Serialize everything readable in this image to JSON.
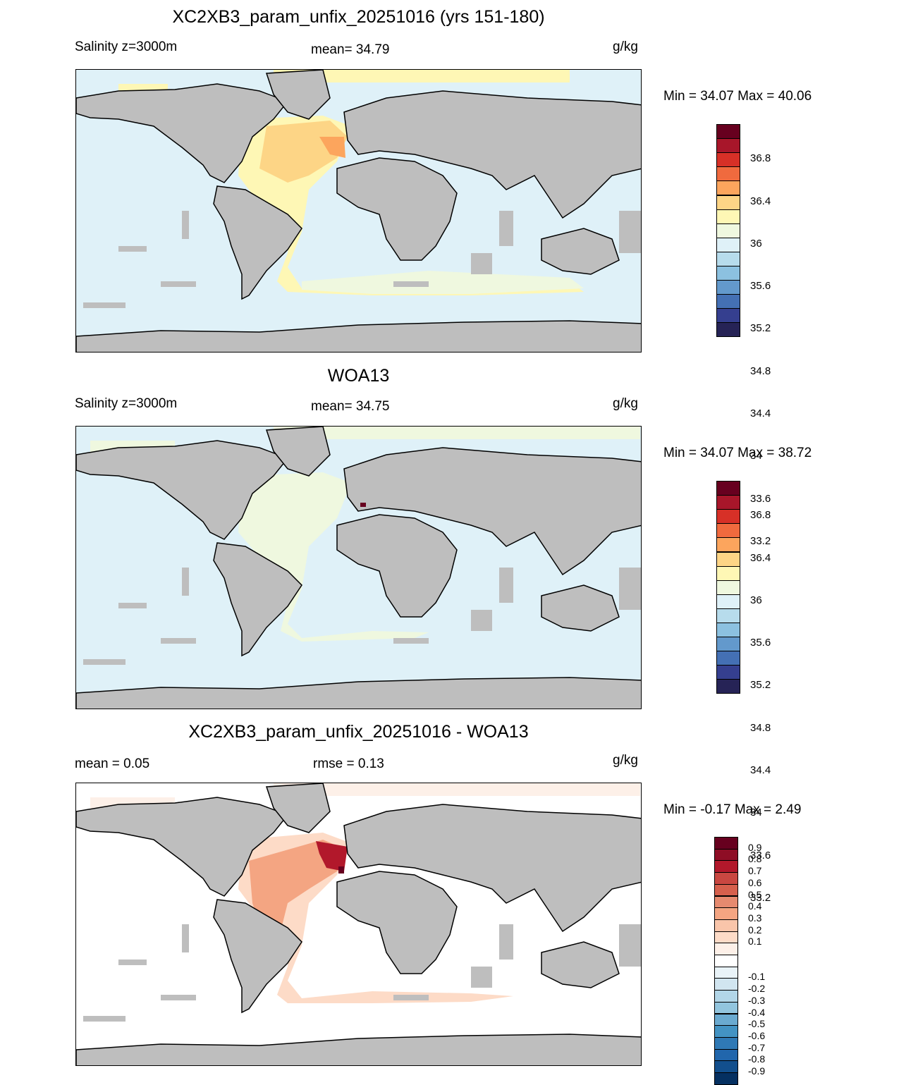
{
  "panels": [
    {
      "title": "XC2XB3_param_unfix_20251016 (yrs 151-180)",
      "left_label": "Salinity z=3000m",
      "center_label": "mean=  34.79",
      "units": "g/kg",
      "minmax": "Min =  34.07 Max =  40.06",
      "colorbar_labels": [
        "36.8",
        "36.4",
        "36",
        "35.6",
        "35.2",
        "34.8",
        "34.4",
        "34",
        "33.6",
        "33.2"
      ],
      "colorbar_colors": [
        "#67001f",
        "#a8162a",
        "#d73027",
        "#f06a3e",
        "#fca55d",
        "#fdd586",
        "#fef7b5",
        "#eff8df",
        "#dff1f8",
        "#b7dcec",
        "#8cc1e0",
        "#6399cc",
        "#4470b4",
        "#353f8f",
        "#262356"
      ]
    },
    {
      "title": "WOA13",
      "left_label": "Salinity z=3000m",
      "center_label": "mean=  34.75",
      "units": "g/kg",
      "minmax": "Min =  34.07 Max =  38.72",
      "colorbar_labels": [
        "36.8",
        "36.4",
        "36",
        "35.6",
        "35.2",
        "34.8",
        "34.4",
        "34",
        "33.6",
        "33.2"
      ],
      "colorbar_colors": [
        "#67001f",
        "#a8162a",
        "#d73027",
        "#f06a3e",
        "#fca55d",
        "#fdd586",
        "#fef7b5",
        "#eff8df",
        "#dff1f8",
        "#b7dcec",
        "#8cc1e0",
        "#6399cc",
        "#4470b4",
        "#353f8f",
        "#262356"
      ]
    },
    {
      "title": "XC2XB3_param_unfix_20251016 - WOA13",
      "left_label": "mean =    0.05",
      "center_label": "rmse =    0.13",
      "units": "g/kg",
      "minmax": "Min =  -0.17 Max =    2.49",
      "colorbar_labels": [
        "0.9",
        "0.8",
        "0.7",
        "0.6",
        "0.5",
        "0.4",
        "0.3",
        "0.2",
        "0.1",
        "-0.1",
        "-0.2",
        "-0.3",
        "-0.4",
        "-0.5",
        "-0.6",
        "-0.7",
        "-0.8",
        "-0.9"
      ],
      "colorbar_colors": [
        "#67001f",
        "#8e0d25",
        "#b2182b",
        "#c94741",
        "#d6604d",
        "#e68a6f",
        "#f4a582",
        "#f9c5aa",
        "#fddbc7",
        "#fdf0e8",
        "#ffffff",
        "#e9f3f8",
        "#d1e5f0",
        "#b2d6e8",
        "#92c5de",
        "#6aaad0",
        "#4393c3",
        "#2f79b5",
        "#2166ac",
        "#124f8d",
        "#053061"
      ]
    }
  ]
}
